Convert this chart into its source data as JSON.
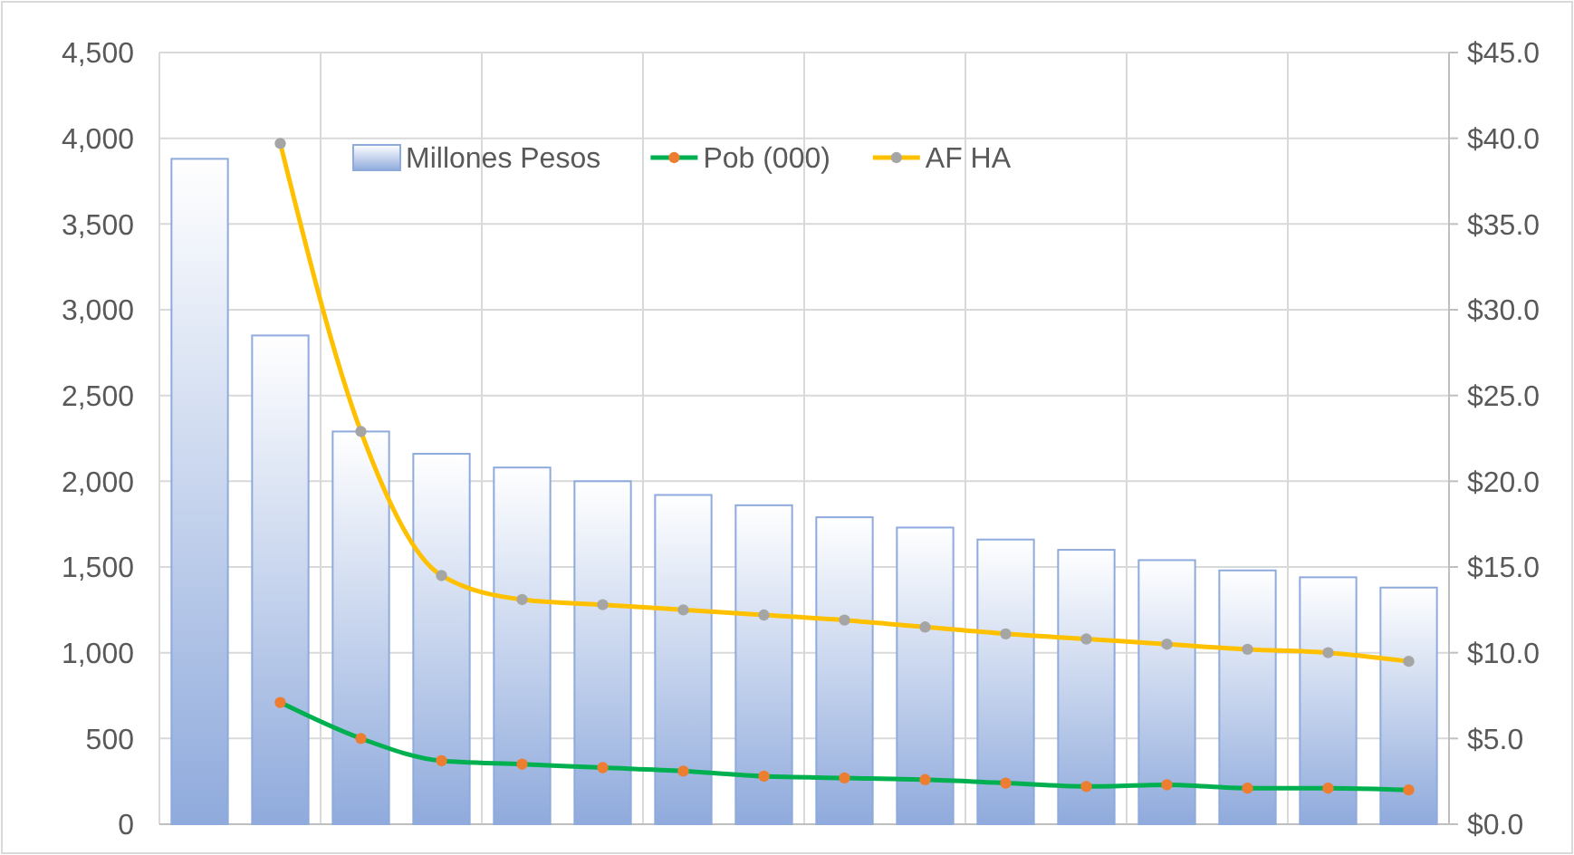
{
  "chart_data": {
    "type": "bar",
    "categories": [
      null,
      null,
      null,
      null,
      null,
      null,
      null,
      null,
      null,
      null,
      null,
      null,
      null,
      null,
      null,
      null
    ],
    "series": [
      {
        "name": "Millones Pesos",
        "color": "#8faadc",
        "values": [
          3880,
          2850,
          2290,
          2160,
          2080,
          2000,
          1920,
          1860,
          1790,
          1730,
          1660,
          1600,
          1540,
          1480,
          1440,
          1380
        ]
      },
      {
        "name": "Pob (000)",
        "type": "line",
        "color": "#00b050",
        "colors": [
          null,
          "#ed7d31",
          "#ed7d31",
          "#ed7d31",
          "#ed7d31",
          "#ed7d31",
          "#ed7d31",
          "#ed7d31",
          "#ed7d31",
          "#ed7d31",
          "#ed7d31",
          "#ed7d31",
          "#ed7d31",
          "#ed7d31",
          "#ed7d31",
          "#ed7d31"
        ],
        "values": [
          null,
          710,
          500,
          370,
          350,
          330,
          310,
          280,
          270,
          260,
          240,
          220,
          230,
          210,
          210,
          200
        ]
      },
      {
        "name": "AF HA",
        "type": "line",
        "axis": "y2",
        "color": "#ffc000",
        "colors": [
          null,
          "#a5a5a5",
          "#a5a5a5",
          "#a5a5a5",
          "#a5a5a5",
          "#a5a5a5",
          "#a5a5a5",
          "#a5a5a5",
          "#a5a5a5",
          "#a5a5a5",
          "#a5a5a5",
          "#a5a5a5",
          "#a5a5a5",
          "#a5a5a5",
          "#a5a5a5",
          "#a5a5a5"
        ],
        "values": [
          null,
          39.7,
          22.9,
          14.5,
          13.1,
          12.8,
          12.5,
          12.2,
          11.9,
          11.5,
          11.1,
          10.8,
          10.5,
          10.2,
          10.0,
          9.5
        ]
      }
    ],
    "ylim": [
      0,
      4500
    ],
    "yticks": [
      {
        "value": 0,
        "label": "0"
      },
      {
        "value": 500,
        "label": "500"
      },
      {
        "value": 1000,
        "label": "1,000"
      },
      {
        "value": 1500,
        "label": "1,500"
      },
      {
        "value": 2000,
        "label": "2,000"
      },
      {
        "value": 2500,
        "label": "2,500"
      },
      {
        "value": 3000,
        "label": "3,000"
      },
      {
        "value": 3500,
        "label": "3,500"
      },
      {
        "value": 4000,
        "label": "4,000"
      },
      {
        "value": 4500,
        "label": "4,500"
      }
    ],
    "y2lim": [
      0,
      45
    ],
    "y2ticks": [
      {
        "value": 0,
        "label": "$0.0"
      },
      {
        "value": 5,
        "label": "$5.0"
      },
      {
        "value": 10,
        "label": "$10.0"
      },
      {
        "value": 15,
        "label": "$15.0"
      },
      {
        "value": 20,
        "label": "$20.0"
      },
      {
        "value": 25,
        "label": "$25.0"
      },
      {
        "value": 30,
        "label": "$30.0"
      },
      {
        "value": 35,
        "label": "$35.0"
      },
      {
        "value": 40,
        "label": "$40.0"
      },
      {
        "value": 45,
        "label": "$45.0"
      }
    ],
    "grid": true,
    "legend": "top",
    "marker": "circle"
  }
}
